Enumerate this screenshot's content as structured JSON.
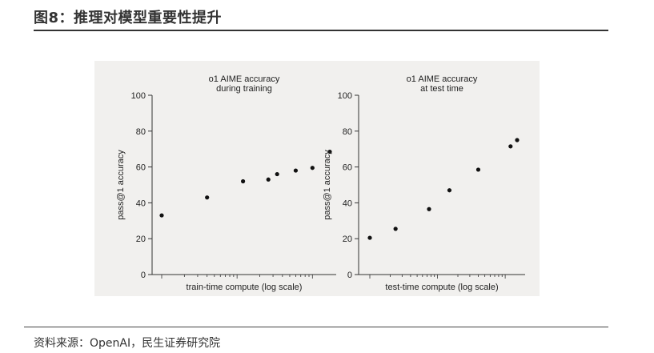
{
  "figure": {
    "title": "图8：推理对模型重要性提升",
    "source": "资料来源：OpenAI，民生证券研究院"
  },
  "chart_data": [
    {
      "type": "scatter",
      "title": "o1 AIME accuracy\nduring training",
      "xlabel": "train-time compute (log scale)",
      "ylabel": "pass@1 accuracy",
      "x_scale": "log",
      "ylim": [
        0,
        100
      ],
      "yticks": [
        "0",
        "20",
        "40",
        "60",
        "80",
        "100"
      ],
      "grid": false,
      "points": [
        {
          "x": 1.0,
          "y": 33
        },
        {
          "x": 4.0,
          "y": 43
        },
        {
          "x": 12.0,
          "y": 52
        },
        {
          "x": 26.0,
          "y": 53
        },
        {
          "x": 34.0,
          "y": 56
        },
        {
          "x": 60.0,
          "y": 58
        },
        {
          "x": 100.0,
          "y": 59.5
        },
        {
          "x": 170.0,
          "y": 68.5
        }
      ]
    },
    {
      "type": "scatter",
      "title": "o1 AIME accuracy\nat test time",
      "xlabel": "test-time compute (log scale)",
      "ylabel": "pass@1 accuracy",
      "x_scale": "log",
      "ylim": [
        0,
        100
      ],
      "yticks": [
        "0",
        "20",
        "40",
        "60",
        "80",
        "100"
      ],
      "grid": false,
      "points": [
        {
          "x": 1.0,
          "y": 20.5
        },
        {
          "x": 2.4,
          "y": 25.5
        },
        {
          "x": 7.5,
          "y": 36.5
        },
        {
          "x": 15.0,
          "y": 47
        },
        {
          "x": 40.0,
          "y": 58.5
        },
        {
          "x": 120.0,
          "y": 71.5
        },
        {
          "x": 150.0,
          "y": 75
        }
      ]
    }
  ]
}
